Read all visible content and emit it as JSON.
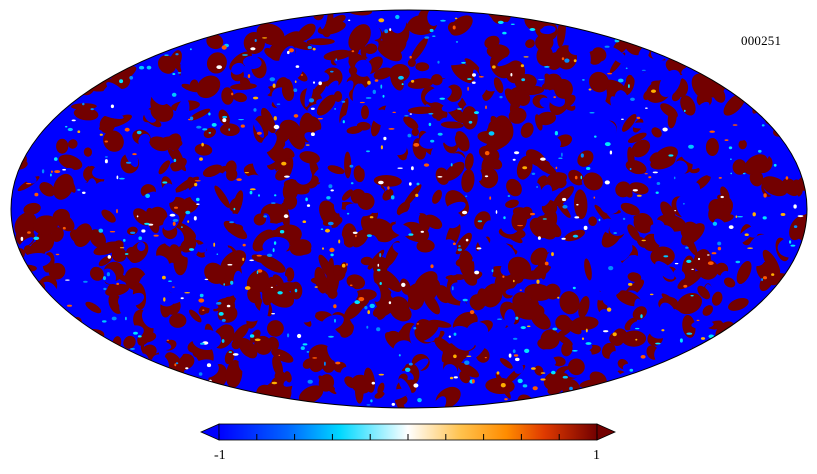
{
  "map": {
    "id_label": "000251",
    "projection": "mollweide",
    "colormap": [
      "#0000ff",
      "#008cff",
      "#00e6ff",
      "#ffffff",
      "#ffd37a",
      "#ff9900",
      "#e63600",
      "#730000"
    ],
    "background_color": "#ffffff",
    "outline_color": "#000000"
  },
  "colorbar": {
    "min_label": "-1",
    "max_label": "1",
    "range": [
      -1,
      1
    ],
    "tick_count": 11,
    "under_color": "#0000ff",
    "over_color": "#730000"
  }
}
